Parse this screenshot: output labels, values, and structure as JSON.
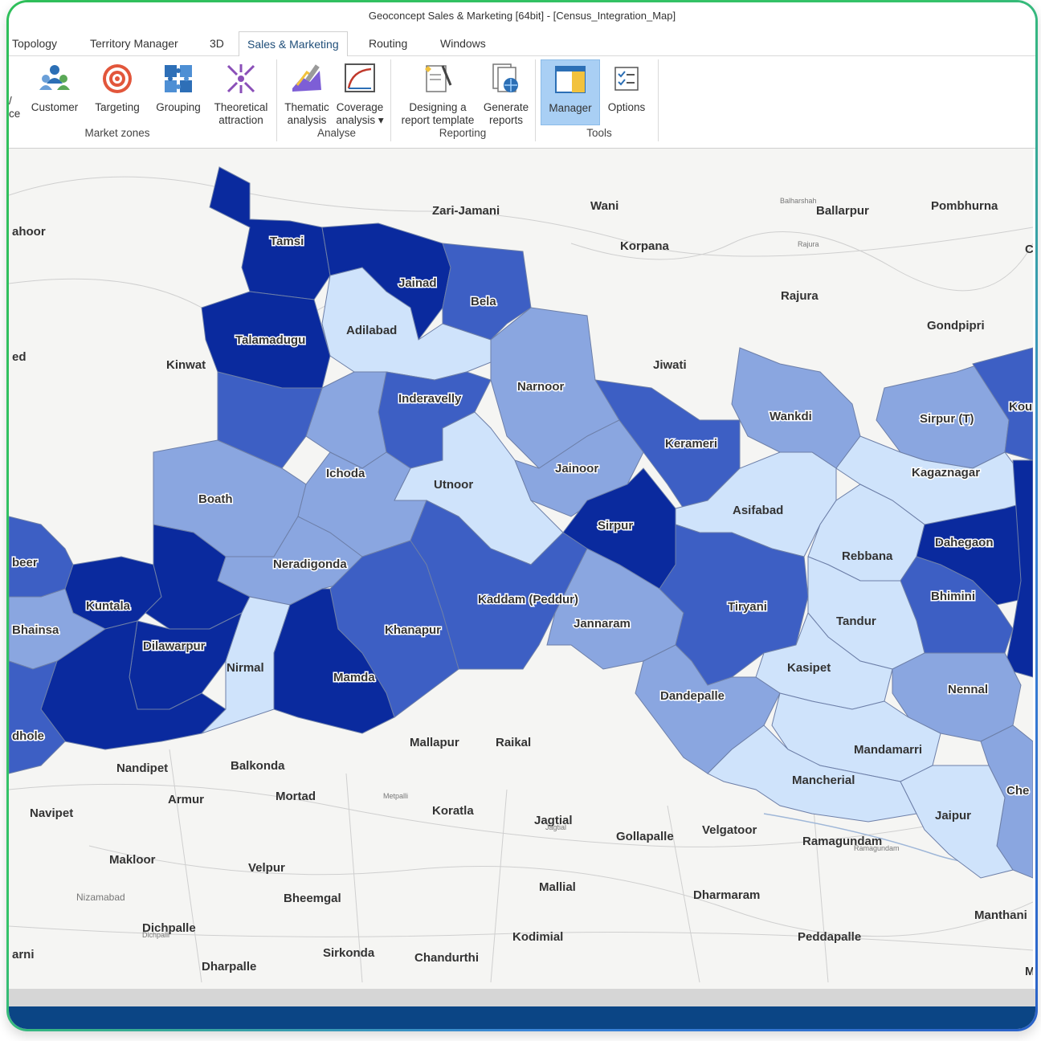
{
  "window": {
    "title": "Geoconcept Sales & Marketing [64bit] - [Census_Integration_Map]"
  },
  "tabs": [
    "Topology",
    "Territory Manager",
    "3D",
    "Sales & Marketing",
    "Routing",
    "Windows"
  ],
  "ribbon": {
    "partial_button": {
      "line1": "/",
      "line2": "ce"
    },
    "market_zones": {
      "label": "Market zones",
      "buttons": [
        {
          "line1": "Customer",
          "line2": ""
        },
        {
          "line1": "Targeting",
          "line2": ""
        },
        {
          "line1": "Grouping",
          "line2": ""
        },
        {
          "line1": "Theoretical",
          "line2": "attraction"
        }
      ]
    },
    "analyse": {
      "label": "Analyse",
      "buttons": [
        {
          "line1": "Thematic",
          "line2": "analysis"
        },
        {
          "line1": "Coverage",
          "line2": "analysis ▾"
        }
      ]
    },
    "reporting": {
      "label": "Reporting",
      "buttons": [
        {
          "line1": "Designing a",
          "line2": "report template"
        },
        {
          "line1": "Generate",
          "line2": "reports"
        }
      ]
    },
    "tools": {
      "label": "Tools",
      "buttons": [
        {
          "line1": "Manager",
          "line2": ""
        },
        {
          "line1": "Options",
          "line2": ""
        }
      ]
    }
  },
  "map": {
    "colors": {
      "darkest": "#0a2a9e",
      "dark": "#3d5fc4",
      "medium": "#8aa6e0",
      "light": "#cfe3fb"
    },
    "district_labels": [
      "Tamsi",
      "Jainad",
      "Bela",
      "Talamadugu",
      "Adilabad",
      "Inderavelly",
      "Narnoor",
      "Ichoda",
      "Boath",
      "Utnoor",
      "Jainoor",
      "Kerameri",
      "Wankdi",
      "Sirpur (T)",
      "Kagaznagar",
      "Sirpur",
      "Asifabad",
      "Neradigonda",
      "Kaddam (Peddur)",
      "Khanapur",
      "Jannaram",
      "Tiryani",
      "Rebbana",
      "Dahegaon",
      "Bhimini",
      "Tandur",
      "Kuntala",
      "Dilawarpur",
      "Nirmal",
      "Mamda",
      "Kasipet",
      "Dandepalle",
      "Nennal",
      "Mandamarri",
      "Mancherial",
      "Jaipur",
      "Bhainsa",
      "beer",
      "dhole",
      "Kou",
      "Che"
    ],
    "place_labels": [
      "Zari-Jamani",
      "Wani",
      "Ballarpur",
      "Pombhurna",
      "ahoor",
      "Korpana",
      "Rajura",
      "Gondpipri",
      "Kinwat",
      "Jiwati",
      "ed",
      "Mallapur",
      "Raikal",
      "Nandipet",
      "Balkonda",
      "Armur",
      "Mortad",
      "Navipet",
      "Koratla",
      "Jagtial",
      "Gollapalle",
      "Velgatoor",
      "Ramagundam",
      "Makloor",
      "Velpur",
      "Mallial",
      "Bheemgal",
      "Dharmaram",
      "Nizamabad",
      "Dichpalle",
      "Kodimial",
      "Peddapalle",
      "Manthani",
      "arni",
      "Dharpalle",
      "Sirkonda",
      "Chandurthi",
      "M",
      "C"
    ],
    "tiny_labels": [
      "Balharshah",
      "Rajura",
      "Metpalli",
      "Jagtial",
      "Ramagundam",
      "Dichpalli"
    ]
  }
}
